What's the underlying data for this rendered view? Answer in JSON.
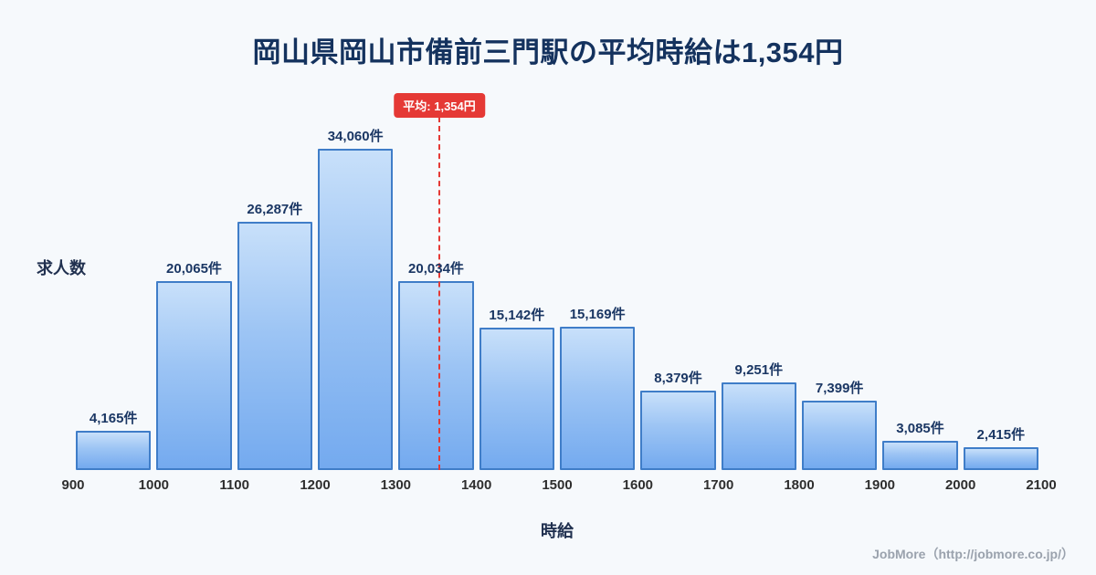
{
  "page": {
    "title": "岡山県岡山市備前三門駅の平均時給は1,354円",
    "footer": "JobMore（http://jobmore.co.jp/）"
  },
  "chart_data": {
    "type": "bar",
    "title": "岡山県岡山市備前三門駅の平均時給は1,354円",
    "xlabel": "時給",
    "ylabel": "求人数",
    "x_ticks": [
      900,
      1000,
      1100,
      1200,
      1300,
      1400,
      1500,
      1600,
      1700,
      1800,
      1900,
      2000,
      2100
    ],
    "categories": [
      "900-1000",
      "1000-1100",
      "1100-1200",
      "1200-1300",
      "1300-1400",
      "1400-1500",
      "1500-1600",
      "1600-1700",
      "1700-1800",
      "1800-1900",
      "1900-2000",
      "2000-2100"
    ],
    "values": [
      4165,
      20065,
      26287,
      34060,
      20034,
      15142,
      15169,
      8379,
      9251,
      7399,
      3085,
      2415
    ],
    "bar_labels": [
      "4,165件",
      "20,065件",
      "26,287件",
      "34,060件",
      "20,034件",
      "15,142件",
      "15,169件",
      "8,379件",
      "9,251件",
      "7,399件",
      "3,085件",
      "2,415件"
    ],
    "average": {
      "value": 1354,
      "label": "平均: 1,354円"
    },
    "xlim": [
      900,
      2100
    ],
    "ylim": [
      0,
      36000
    ],
    "legend": "none",
    "grid": "off",
    "colors": {
      "bar_fill_top": "#c8e0fa",
      "bar_fill_bottom": "#74aaef",
      "bar_border": "#3f7dc8",
      "average_line": "#e53935",
      "title_text": "#14325e",
      "background": "#f6f9fc"
    }
  }
}
